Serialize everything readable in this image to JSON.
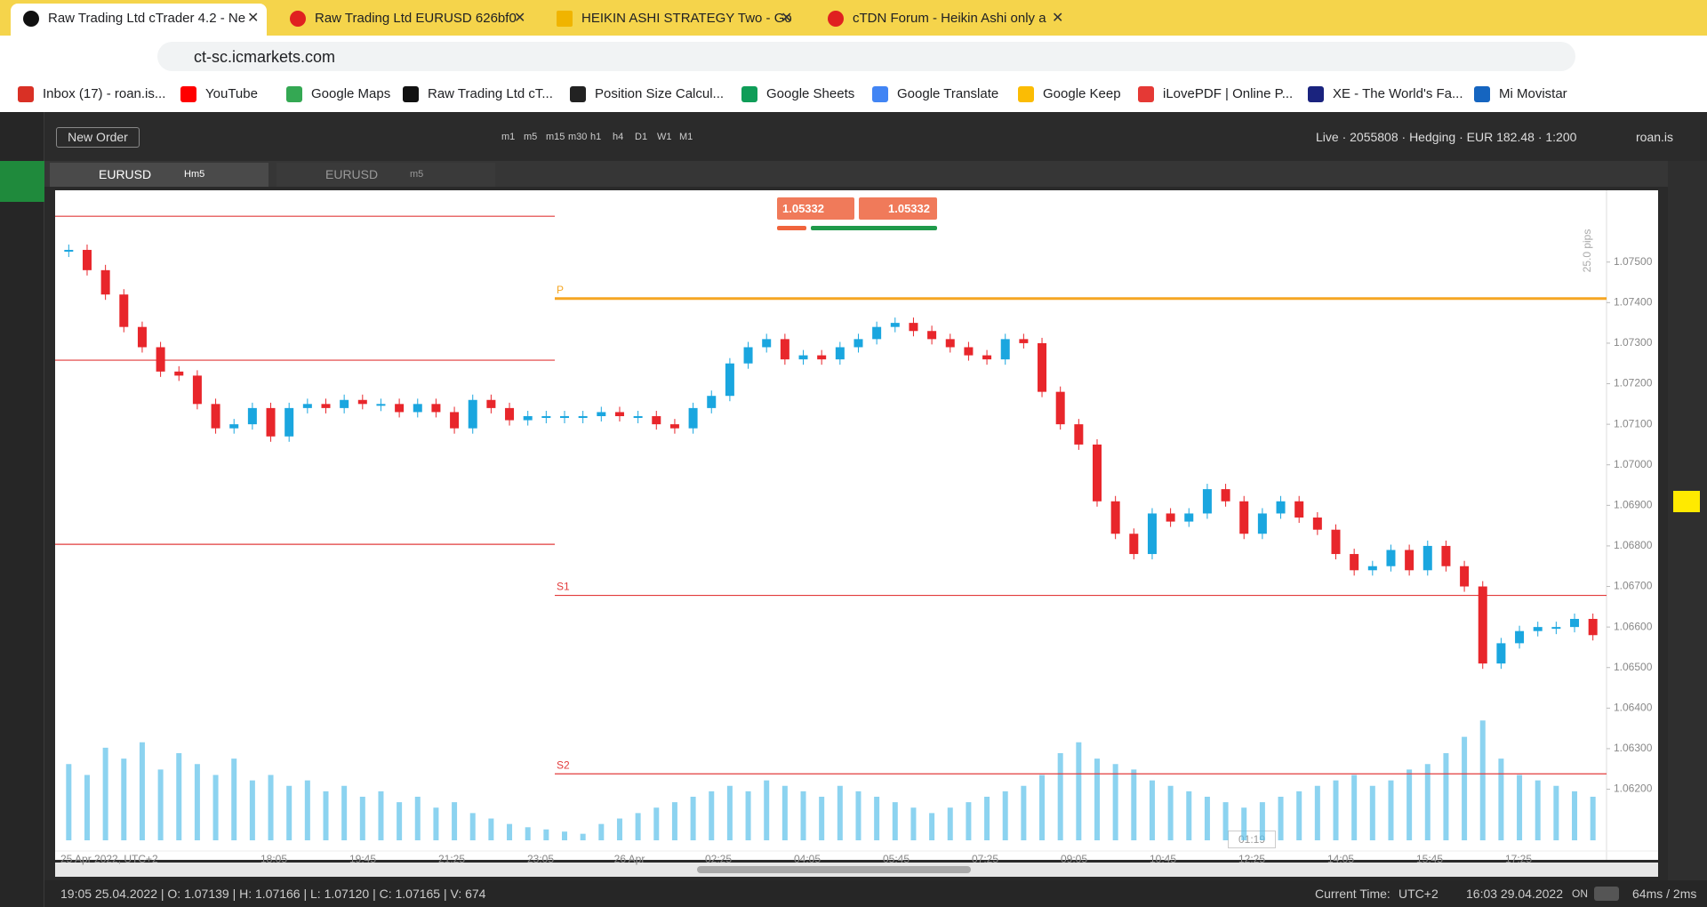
{
  "browser": {
    "tabs": [
      "Raw Trading Ltd cTrader 4.2 - Ne",
      "Raw Trading Ltd EURUSD 626bf0",
      "HEIKIN ASHI STRATEGY Two - Go",
      "cTDN Forum - Heikin Ashi only a"
    ],
    "url": "ct-sc.icmarkets.com",
    "bookmarks": [
      "Inbox (17) - roan.is...",
      "YouTube",
      "Google Maps",
      "Raw Trading Ltd cT...",
      "Position Size Calcul...",
      "Google Sheets",
      "Google Translate",
      "Google Keep",
      "iLovePDF | Online P...",
      "XE - The World's Fa...",
      "Mi Movistar"
    ]
  },
  "toolbar": {
    "new_order": "New Order",
    "timeframes": [
      "m1",
      "m5",
      "m15",
      "m30",
      "h1",
      "h4",
      "D1",
      "W1",
      "M1"
    ],
    "account": "Live · 2055808 · Hedging · EUR 182.48 · 1:200",
    "user": "roan.is"
  },
  "chart_tabs": [
    {
      "symbol": "EURUSD",
      "period": "Hm5"
    },
    {
      "symbol": "EURUSD",
      "period": "m5"
    }
  ],
  "trade_buttons": {
    "sell": "1.05332",
    "buy": "1.05332"
  },
  "pips": "25.0 pips",
  "countdown": "01:19",
  "status": {
    "bar": "19:05 25.04.2022 | O: 1.07139 | H: 1.07166 | L: 1.07120 | C: 1.07165 | V: 674",
    "current_time_label": "Current Time:",
    "timezone": "UTC+2",
    "current_time": "16:03 29.04.2022",
    "toggle": "ON",
    "latency": "64ms / 2ms"
  },
  "chart_data": {
    "type": "candlestick",
    "up_color": "#1aa6df",
    "down_color": "#e8262b",
    "values": [
      1.0753,
      1.0748,
      1.0742,
      1.0734,
      1.0729,
      1.0723,
      1.0722,
      1.0715,
      1.0709,
      1.071,
      1.0714,
      1.0707,
      1.0714,
      1.0715,
      1.0714,
      1.0716,
      1.0715,
      1.0715,
      1.0713,
      1.0715,
      1.0713,
      1.0709,
      1.0716,
      1.0714,
      1.0711,
      1.0712,
      1.0712,
      1.0712,
      1.0712,
      1.0713,
      1.0712,
      1.0712,
      1.071,
      1.0709,
      1.0714,
      1.0717,
      1.0725,
      1.0729,
      1.0731,
      1.0726,
      1.0727,
      1.0726,
      1.0729,
      1.0731,
      1.0734,
      1.0735,
      1.0733,
      1.0731,
      1.0729,
      1.0727,
      1.0726,
      1.0731,
      1.073,
      1.0718,
      1.071,
      1.0705,
      1.0691,
      1.0683,
      1.0678,
      1.0688,
      1.0686,
      1.0688,
      1.0694,
      1.0691,
      1.0683,
      1.0688,
      1.0691,
      1.0687,
      1.0684,
      1.0678,
      1.0674,
      1.0675,
      1.0679,
      1.0674,
      1.068,
      1.0675,
      1.067,
      1.0651,
      1.0656,
      1.0659,
      1.066,
      1.066,
      1.0662,
      1.0658
    ],
    "ylim": [
      1.06074,
      1.07677
    ],
    "yticks": [
      {
        "value": 1.075,
        "label": "1.07500"
      },
      {
        "value": 1.074,
        "label": "1.07400"
      },
      {
        "value": 1.073,
        "label": "1.07300"
      },
      {
        "value": 1.072,
        "label": "1.07200"
      },
      {
        "value": 1.071,
        "label": "1.07100"
      },
      {
        "value": 1.07,
        "label": "1.07000"
      },
      {
        "value": 1.069,
        "label": "1.06900"
      },
      {
        "value": 1.068,
        "label": "1.06800"
      },
      {
        "value": 1.067,
        "label": "1.06700"
      },
      {
        "value": 1.066,
        "label": "1.06600"
      },
      {
        "value": 1.065,
        "label": "1.06500"
      },
      {
        "value": 1.064,
        "label": "1.06400"
      },
      {
        "value": 1.063,
        "label": "1.06300"
      },
      {
        "value": 1.062,
        "label": "1.06200"
      }
    ],
    "x_labels": [
      "25 Apr 2022, UTC+2",
      "18:05",
      "19:45",
      "21:25",
      "23:05",
      "26 Apr",
      "02:25",
      "04:05",
      "05:45",
      "07:25",
      "09:05",
      "10:45",
      "12:25",
      "14:05",
      "15:45",
      "17:25"
    ],
    "volume": {
      "color": "#5bc0ea",
      "ylim": [
        0,
        120
      ],
      "values": [
        70,
        60,
        85,
        75,
        90,
        65,
        80,
        70,
        60,
        75,
        55,
        60,
        50,
        55,
        45,
        50,
        40,
        45,
        35,
        40,
        30,
        35,
        25,
        20,
        15,
        12,
        10,
        8,
        6,
        15,
        20,
        25,
        30,
        35,
        40,
        45,
        50,
        45,
        55,
        50,
        45,
        40,
        50,
        45,
        40,
        35,
        30,
        25,
        30,
        35,
        40,
        45,
        50,
        60,
        80,
        90,
        75,
        70,
        65,
        55,
        50,
        45,
        40,
        35,
        30,
        35,
        40,
        45,
        50,
        55,
        60,
        50,
        55,
        65,
        70,
        80,
        95,
        110,
        75,
        60,
        55,
        50,
        45,
        40
      ]
    },
    "levels": [
      {
        "label": "P",
        "value": 1.0741,
        "color": "#f5a623"
      },
      {
        "label": "S1",
        "value": 1.06678,
        "color": "#e23b3b"
      },
      {
        "label": "S2",
        "value": 1.06238,
        "color": "#e23b3b"
      }
    ],
    "prev_day_levels": [
      1.07613,
      1.07258,
      1.06804
    ],
    "prev_day_color": "#e23b3b"
  }
}
